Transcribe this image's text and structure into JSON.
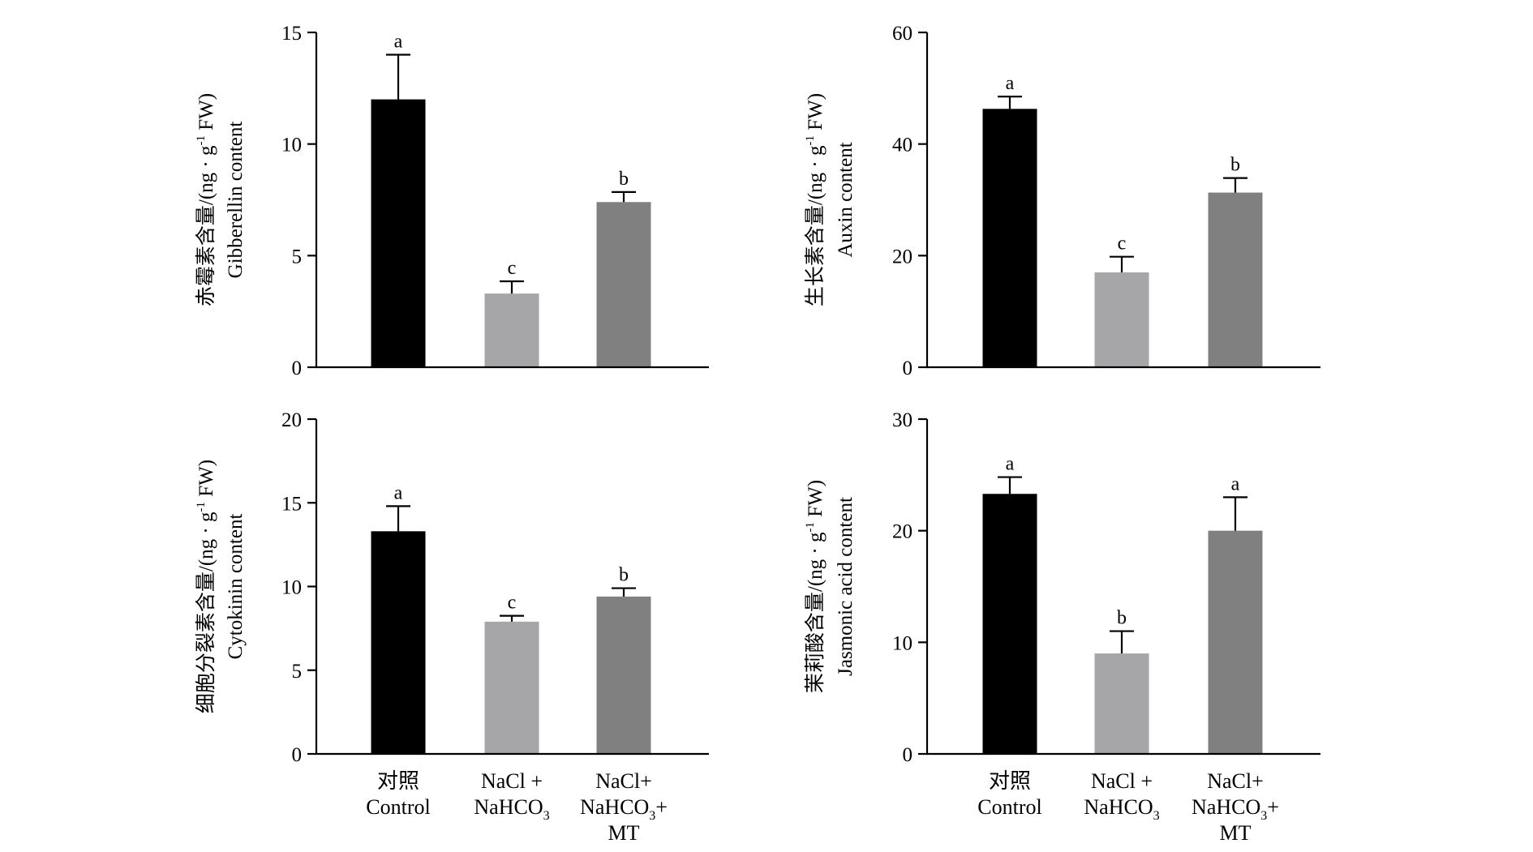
{
  "chart_data": [
    {
      "type": "bar",
      "ylabel_cn": "赤霉素含量/(ng · g-1 FW)",
      "ylabel_cn_parts": {
        "main": "赤霉素含量/(ng · g",
        "sup": "-1",
        "tail": " FW)"
      },
      "ylabel_en": "Gibberellin content",
      "ylim": [
        0,
        15
      ],
      "yticks": [
        "0",
        "5",
        "10",
        "15"
      ],
      "values": [
        12.0,
        3.3,
        7.4
      ],
      "errors": [
        2.0,
        0.55,
        0.45
      ],
      "letters": [
        "a",
        "c",
        "b"
      ],
      "colors": [
        "#000000",
        "#a6a6a8",
        "#808080"
      ]
    },
    {
      "type": "bar",
      "ylabel_cn": "生长素含量/(ng · g-1 FW)",
      "ylabel_cn_parts": {
        "main": "生长素含量/(ng · g",
        "sup": "-1",
        "tail": " FW)"
      },
      "ylabel_en": "Auxin content",
      "ylim": [
        0,
        60
      ],
      "yticks": [
        "0",
        "20",
        "40",
        "60"
      ],
      "values": [
        46.3,
        17.0,
        31.3
      ],
      "errors": [
        2.2,
        2.8,
        2.6
      ],
      "letters": [
        "a",
        "c",
        "b"
      ],
      "colors": [
        "#000000",
        "#a6a6a8",
        "#808080"
      ]
    },
    {
      "type": "bar",
      "ylabel_cn": "细胞分裂素含量/(ng · g-1 FW)",
      "ylabel_cn_parts": {
        "main": "细胞分裂素含量/(ng · g",
        "sup": "-1",
        "tail": " FW)"
      },
      "ylabel_en": "Cytokinin content",
      "ylim": [
        0,
        20
      ],
      "yticks": [
        "0",
        "5",
        "10",
        "15",
        "20"
      ],
      "values": [
        13.3,
        7.9,
        9.4
      ],
      "errors": [
        1.5,
        0.35,
        0.5
      ],
      "letters": [
        "a",
        "c",
        "b"
      ],
      "colors": [
        "#000000",
        "#a6a6a8",
        "#808080"
      ]
    },
    {
      "type": "bar",
      "ylabel_cn": "茉莉酸含量/(ng · g-1 FW)",
      "ylabel_cn_parts": {
        "main": "茉莉酸含量/(ng · g",
        "sup": "-1",
        "tail": " FW)"
      },
      "ylabel_en": "Jasmonic acid content",
      "ylim": [
        0,
        30
      ],
      "yticks": [
        "0",
        "10",
        "20",
        "30"
      ],
      "values": [
        23.3,
        9.0,
        20.0
      ],
      "errors": [
        1.5,
        2.0,
        3.0
      ],
      "letters": [
        "a",
        "b",
        "a"
      ],
      "colors": [
        "#000000",
        "#a6a6a8",
        "#808080"
      ]
    }
  ],
  "categories": [
    {
      "line1": "对照",
      "line2": "Control"
    },
    {
      "line1": "NaCl +",
      "line2": "NaHCO",
      "line2_sub": "3"
    },
    {
      "line1": "NaCl+",
      "line2": "NaHCO",
      "line2_sub": "3",
      "line2_tail": "+",
      "line3": "MT"
    }
  ]
}
